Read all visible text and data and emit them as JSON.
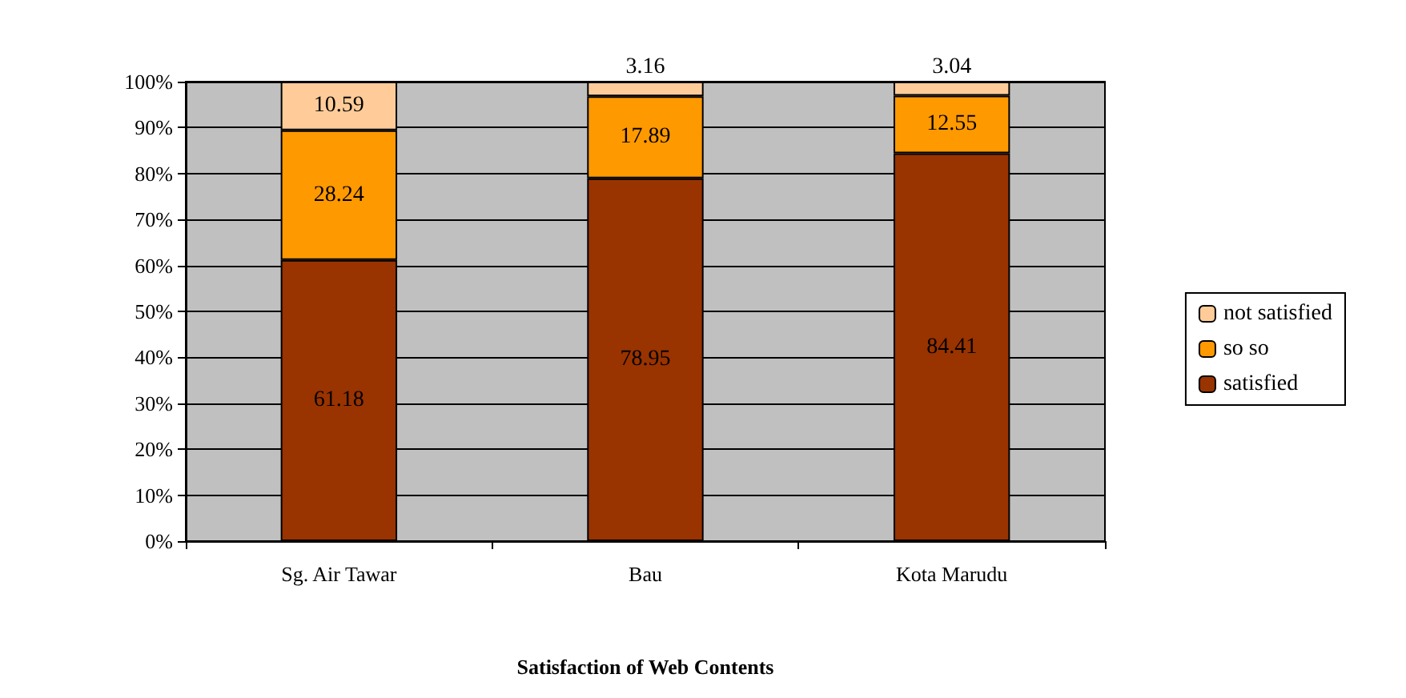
{
  "chart_data": {
    "type": "bar",
    "stacked": true,
    "xlabel": "Satisfaction of Web Contents",
    "categories": [
      "Sg. Air Tawar",
      "Bau",
      "Kota Marudu"
    ],
    "series": [
      {
        "name": "satisfied",
        "color": "#993300",
        "values": [
          61.18,
          78.95,
          84.41
        ]
      },
      {
        "name": "so so",
        "color": "#ff9900",
        "values": [
          28.24,
          17.89,
          12.55
        ]
      },
      {
        "name": "not satisfied",
        "color": "#ffcc99",
        "values": [
          10.59,
          3.16,
          3.04
        ]
      }
    ],
    "ylim": [
      0,
      100
    ],
    "yticks": [
      {
        "value": 0,
        "label": "0%"
      },
      {
        "value": 10,
        "label": "10%"
      },
      {
        "value": 20,
        "label": "20%"
      },
      {
        "value": 30,
        "label": "30%"
      },
      {
        "value": 40,
        "label": "40%"
      },
      {
        "value": 50,
        "label": "50%"
      },
      {
        "value": 60,
        "label": "60%"
      },
      {
        "value": 70,
        "label": "70%"
      },
      {
        "value": 80,
        "label": "80%"
      },
      {
        "value": 90,
        "label": "90%"
      },
      {
        "value": 100,
        "label": "100%"
      }
    ],
    "grid": "y",
    "legend": "right",
    "data_labels": true
  }
}
